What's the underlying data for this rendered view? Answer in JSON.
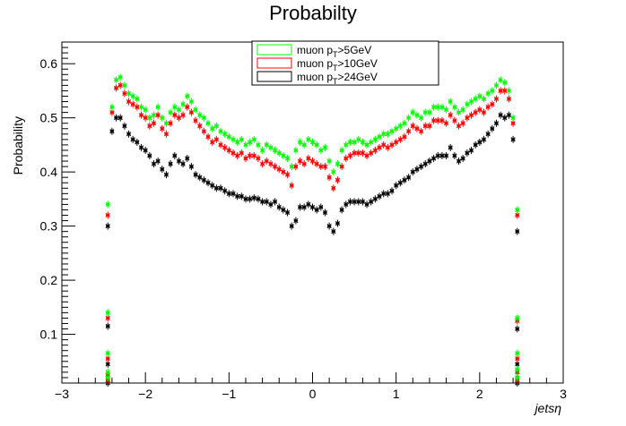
{
  "chart_data": {
    "type": "scatter",
    "title": "Probabilty",
    "xlabel": "jetsη",
    "ylabel": "Probability",
    "xlim": [
      -3,
      3
    ],
    "ylim": [
      0.01,
      0.64
    ],
    "xticks": [
      -3,
      -2,
      -1,
      0,
      1,
      2,
      3
    ],
    "xtick_labels": [
      "−3",
      "−2",
      "−1",
      "0",
      "1",
      "2",
      "3"
    ],
    "yticks": [
      0.1,
      0.2,
      0.3,
      0.4,
      0.5,
      0.6
    ],
    "ytick_labels": [
      "0.1",
      "0.2",
      "0.3",
      "0.4",
      "0.5",
      "0.6"
    ],
    "grid": false,
    "legend_position": "top-center",
    "x": [
      -2.45,
      -2.4,
      -2.35,
      -2.3,
      -2.25,
      -2.2,
      -2.15,
      -2.1,
      -2.05,
      -2.0,
      -1.95,
      -1.9,
      -1.85,
      -1.8,
      -1.75,
      -1.7,
      -1.65,
      -1.6,
      -1.55,
      -1.5,
      -1.45,
      -1.4,
      -1.35,
      -1.3,
      -1.25,
      -1.2,
      -1.15,
      -1.1,
      -1.05,
      -1.0,
      -0.95,
      -0.9,
      -0.85,
      -0.8,
      -0.75,
      -0.7,
      -0.65,
      -0.6,
      -0.55,
      -0.5,
      -0.45,
      -0.4,
      -0.35,
      -0.3,
      -0.25,
      -0.2,
      -0.15,
      -0.1,
      -0.05,
      0.0,
      0.05,
      0.1,
      0.15,
      0.2,
      0.25,
      0.3,
      0.35,
      0.4,
      0.45,
      0.5,
      0.55,
      0.6,
      0.65,
      0.7,
      0.75,
      0.8,
      0.85,
      0.9,
      0.95,
      1.0,
      1.05,
      1.1,
      1.15,
      1.2,
      1.25,
      1.3,
      1.35,
      1.4,
      1.45,
      1.5,
      1.55,
      1.6,
      1.65,
      1.7,
      1.75,
      1.8,
      1.85,
      1.9,
      1.95,
      2.0,
      2.05,
      2.1,
      2.15,
      2.2,
      2.25,
      2.3,
      2.35,
      2.4,
      2.45
    ],
    "series": [
      {
        "name": "muon p_T>5GeV",
        "color": "#00ff00",
        "values": [
          0.34,
          0.52,
          0.57,
          0.575,
          0.56,
          0.545,
          0.54,
          0.535,
          0.52,
          0.515,
          0.5,
          0.505,
          0.52,
          0.5,
          0.49,
          0.51,
          0.52,
          0.515,
          0.525,
          0.54,
          0.53,
          0.515,
          0.505,
          0.5,
          0.49,
          0.48,
          0.485,
          0.475,
          0.47,
          0.465,
          0.46,
          0.455,
          0.46,
          0.45,
          0.455,
          0.46,
          0.45,
          0.44,
          0.45,
          0.445,
          0.44,
          0.435,
          0.43,
          0.425,
          0.41,
          0.44,
          0.455,
          0.45,
          0.46,
          0.455,
          0.45,
          0.44,
          0.445,
          0.42,
          0.4,
          0.415,
          0.44,
          0.45,
          0.455,
          0.455,
          0.46,
          0.455,
          0.45,
          0.455,
          0.46,
          0.465,
          0.47,
          0.47,
          0.475,
          0.48,
          0.485,
          0.49,
          0.5,
          0.51,
          0.505,
          0.5,
          0.51,
          0.51,
          0.52,
          0.52,
          0.52,
          0.515,
          0.53,
          0.52,
          0.51,
          0.515,
          0.525,
          0.53,
          0.535,
          0.54,
          0.535,
          0.545,
          0.55,
          0.56,
          0.57,
          0.565,
          0.55,
          0.5,
          0.33
        ]
      },
      {
        "name": "muon p_T>10GeV",
        "color": "#ff0000",
        "values": [
          0.32,
          0.51,
          0.555,
          0.56,
          0.545,
          0.53,
          0.525,
          0.52,
          0.505,
          0.5,
          0.485,
          0.49,
          0.505,
          0.48,
          0.47,
          0.49,
          0.505,
          0.5,
          0.505,
          0.52,
          0.51,
          0.495,
          0.485,
          0.475,
          0.465,
          0.455,
          0.46,
          0.45,
          0.445,
          0.44,
          0.435,
          0.43,
          0.435,
          0.425,
          0.43,
          0.43,
          0.425,
          0.415,
          0.42,
          0.415,
          0.41,
          0.405,
          0.4,
          0.395,
          0.375,
          0.41,
          0.42,
          0.415,
          0.425,
          0.42,
          0.415,
          0.41,
          0.41,
          0.39,
          0.37,
          0.385,
          0.41,
          0.425,
          0.43,
          0.435,
          0.435,
          0.435,
          0.43,
          0.435,
          0.44,
          0.445,
          0.45,
          0.445,
          0.45,
          0.455,
          0.46,
          0.465,
          0.475,
          0.485,
          0.48,
          0.475,
          0.485,
          0.485,
          0.495,
          0.495,
          0.495,
          0.49,
          0.505,
          0.495,
          0.485,
          0.49,
          0.5,
          0.505,
          0.51,
          0.515,
          0.51,
          0.52,
          0.525,
          0.535,
          0.55,
          0.55,
          0.535,
          0.49,
          0.32
        ]
      },
      {
        "name": "muon p_T>24GeV",
        "color": "#000000",
        "values": [
          0.3,
          0.475,
          0.5,
          0.5,
          0.485,
          0.47,
          0.46,
          0.455,
          0.445,
          0.44,
          0.43,
          0.415,
          0.42,
          0.405,
          0.395,
          0.415,
          0.43,
          0.42,
          0.415,
          0.425,
          0.41,
          0.395,
          0.39,
          0.385,
          0.38,
          0.375,
          0.37,
          0.37,
          0.365,
          0.36,
          0.36,
          0.355,
          0.355,
          0.35,
          0.35,
          0.352,
          0.35,
          0.345,
          0.345,
          0.34,
          0.345,
          0.335,
          0.33,
          0.325,
          0.3,
          0.31,
          0.335,
          0.335,
          0.34,
          0.335,
          0.33,
          0.335,
          0.325,
          0.3,
          0.29,
          0.305,
          0.33,
          0.34,
          0.345,
          0.345,
          0.345,
          0.345,
          0.34,
          0.345,
          0.35,
          0.355,
          0.36,
          0.36,
          0.365,
          0.375,
          0.38,
          0.385,
          0.39,
          0.4,
          0.405,
          0.41,
          0.415,
          0.42,
          0.425,
          0.43,
          0.43,
          0.43,
          0.445,
          0.43,
          0.42,
          0.425,
          0.435,
          0.44,
          0.45,
          0.455,
          0.46,
          0.47,
          0.48,
          0.49,
          0.505,
          0.5,
          0.505,
          0.46,
          0.29
        ]
      }
    ],
    "edge_x": [
      -2.45,
      -2.45,
      -2.45,
      -2.45,
      2.45,
      2.45,
      2.45,
      2.45
    ],
    "edge_series": {
      "muon p_T>5GeV": [
        0.14,
        0.065,
        0.03,
        0.02,
        0.13,
        0.065,
        0.035,
        0.02
      ],
      "muon p_T>10GeV": [
        0.13,
        0.055,
        0.025,
        0.015,
        0.125,
        0.055,
        0.03,
        0.015
      ],
      "muon p_T>24GeV": [
        0.115,
        0.045,
        0.02,
        0.01,
        0.11,
        0.045,
        0.02,
        0.01
      ]
    }
  },
  "legend": {
    "items": [
      {
        "prefix": "muon p",
        "sub": "T",
        "suffix": ">5GeV",
        "color": "#00ff00"
      },
      {
        "prefix": "muon p",
        "sub": "T",
        "suffix": ">10GeV",
        "color": "#ff0000"
      },
      {
        "prefix": "muon p",
        "sub": "T",
        "suffix": ">24GeV",
        "color": "#000000"
      }
    ]
  }
}
